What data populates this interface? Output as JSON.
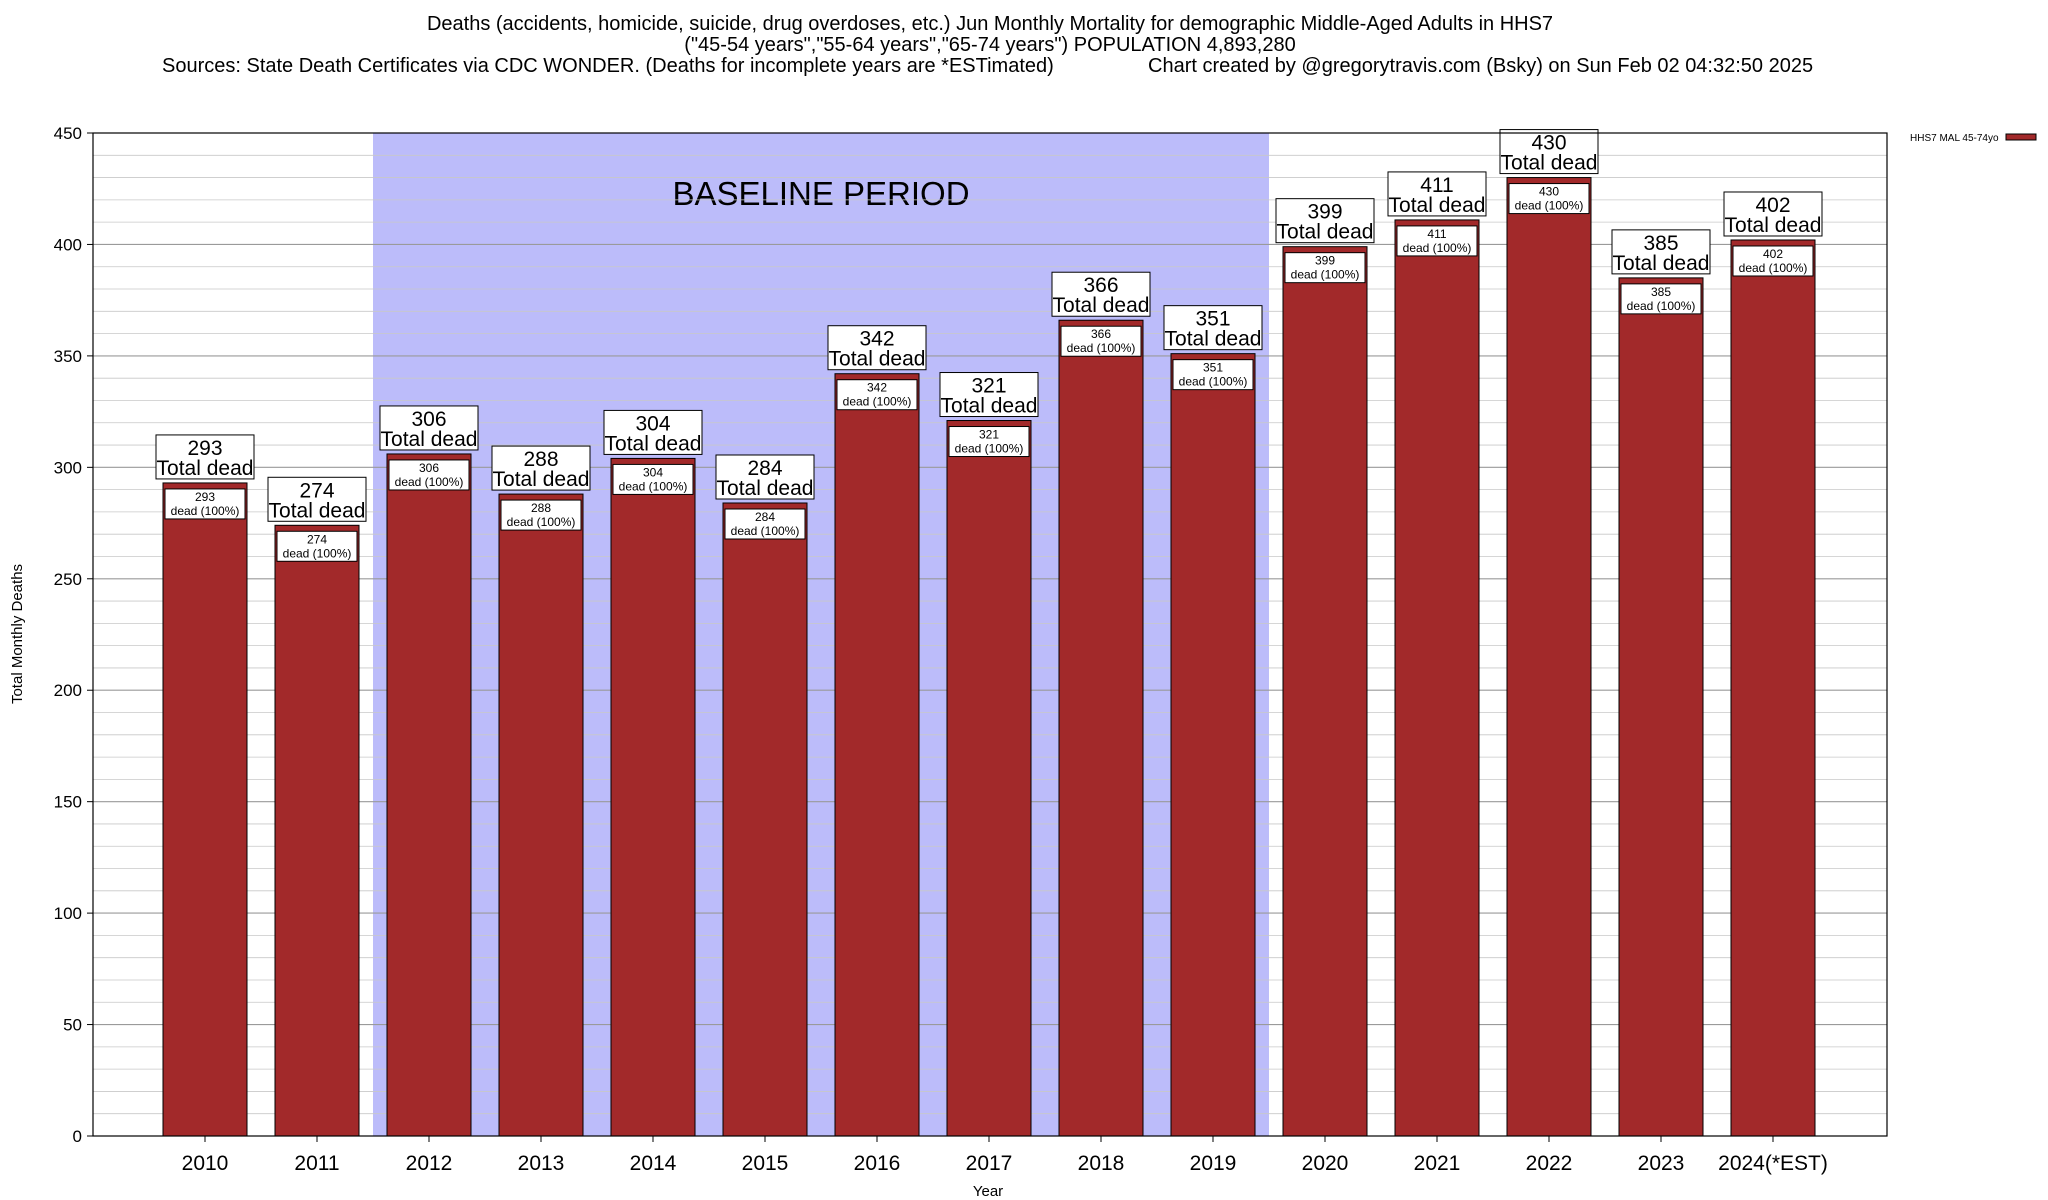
{
  "chart_data": {
    "type": "bar",
    "title": [
      "Deaths (accidents, homicide, suicide, drug overdoses, etc.) Jun Monthly Mortality for demographic Middle-Aged Adults in HHS7",
      "(\"45-54 years\",\"55-64 years\",\"65-74 years\") POPULATION 4,893,280"
    ],
    "sources_text": "Sources: State Death Certificates via CDC WONDER. (Deaths for incomplete years are *ESTimated)",
    "credit_text": "Chart created by @gregorytravis.com (Bsky) on Sun Feb 02 04:32:50 2025",
    "xlabel": "Year",
    "ylabel": "Total Monthly Deaths",
    "ylim": [
      0,
      450
    ],
    "ytick_step": 50,
    "minor_grid_step": 10,
    "grid": true,
    "categories": [
      "2010",
      "2011",
      "2012",
      "2013",
      "2014",
      "2015",
      "2016",
      "2017",
      "2018",
      "2019",
      "2020",
      "2021",
      "2022",
      "2023",
      "2024(*EST)"
    ],
    "series": [
      {
        "name": "HHS7 MAL 45-74yo",
        "color": "#a2292a",
        "values": [
          293,
          274,
          306,
          288,
          304,
          284,
          342,
          321,
          366,
          351,
          399,
          411,
          430,
          385,
          402
        ]
      }
    ],
    "total_label_suffix": "Total dead",
    "inner_label_suffix": "dead (100%)",
    "legend_position": "top-right",
    "baseline": {
      "label": "BASELINE PERIOD",
      "start_category": "2012",
      "end_category": "2019",
      "color": "#bcbcfa"
    }
  }
}
